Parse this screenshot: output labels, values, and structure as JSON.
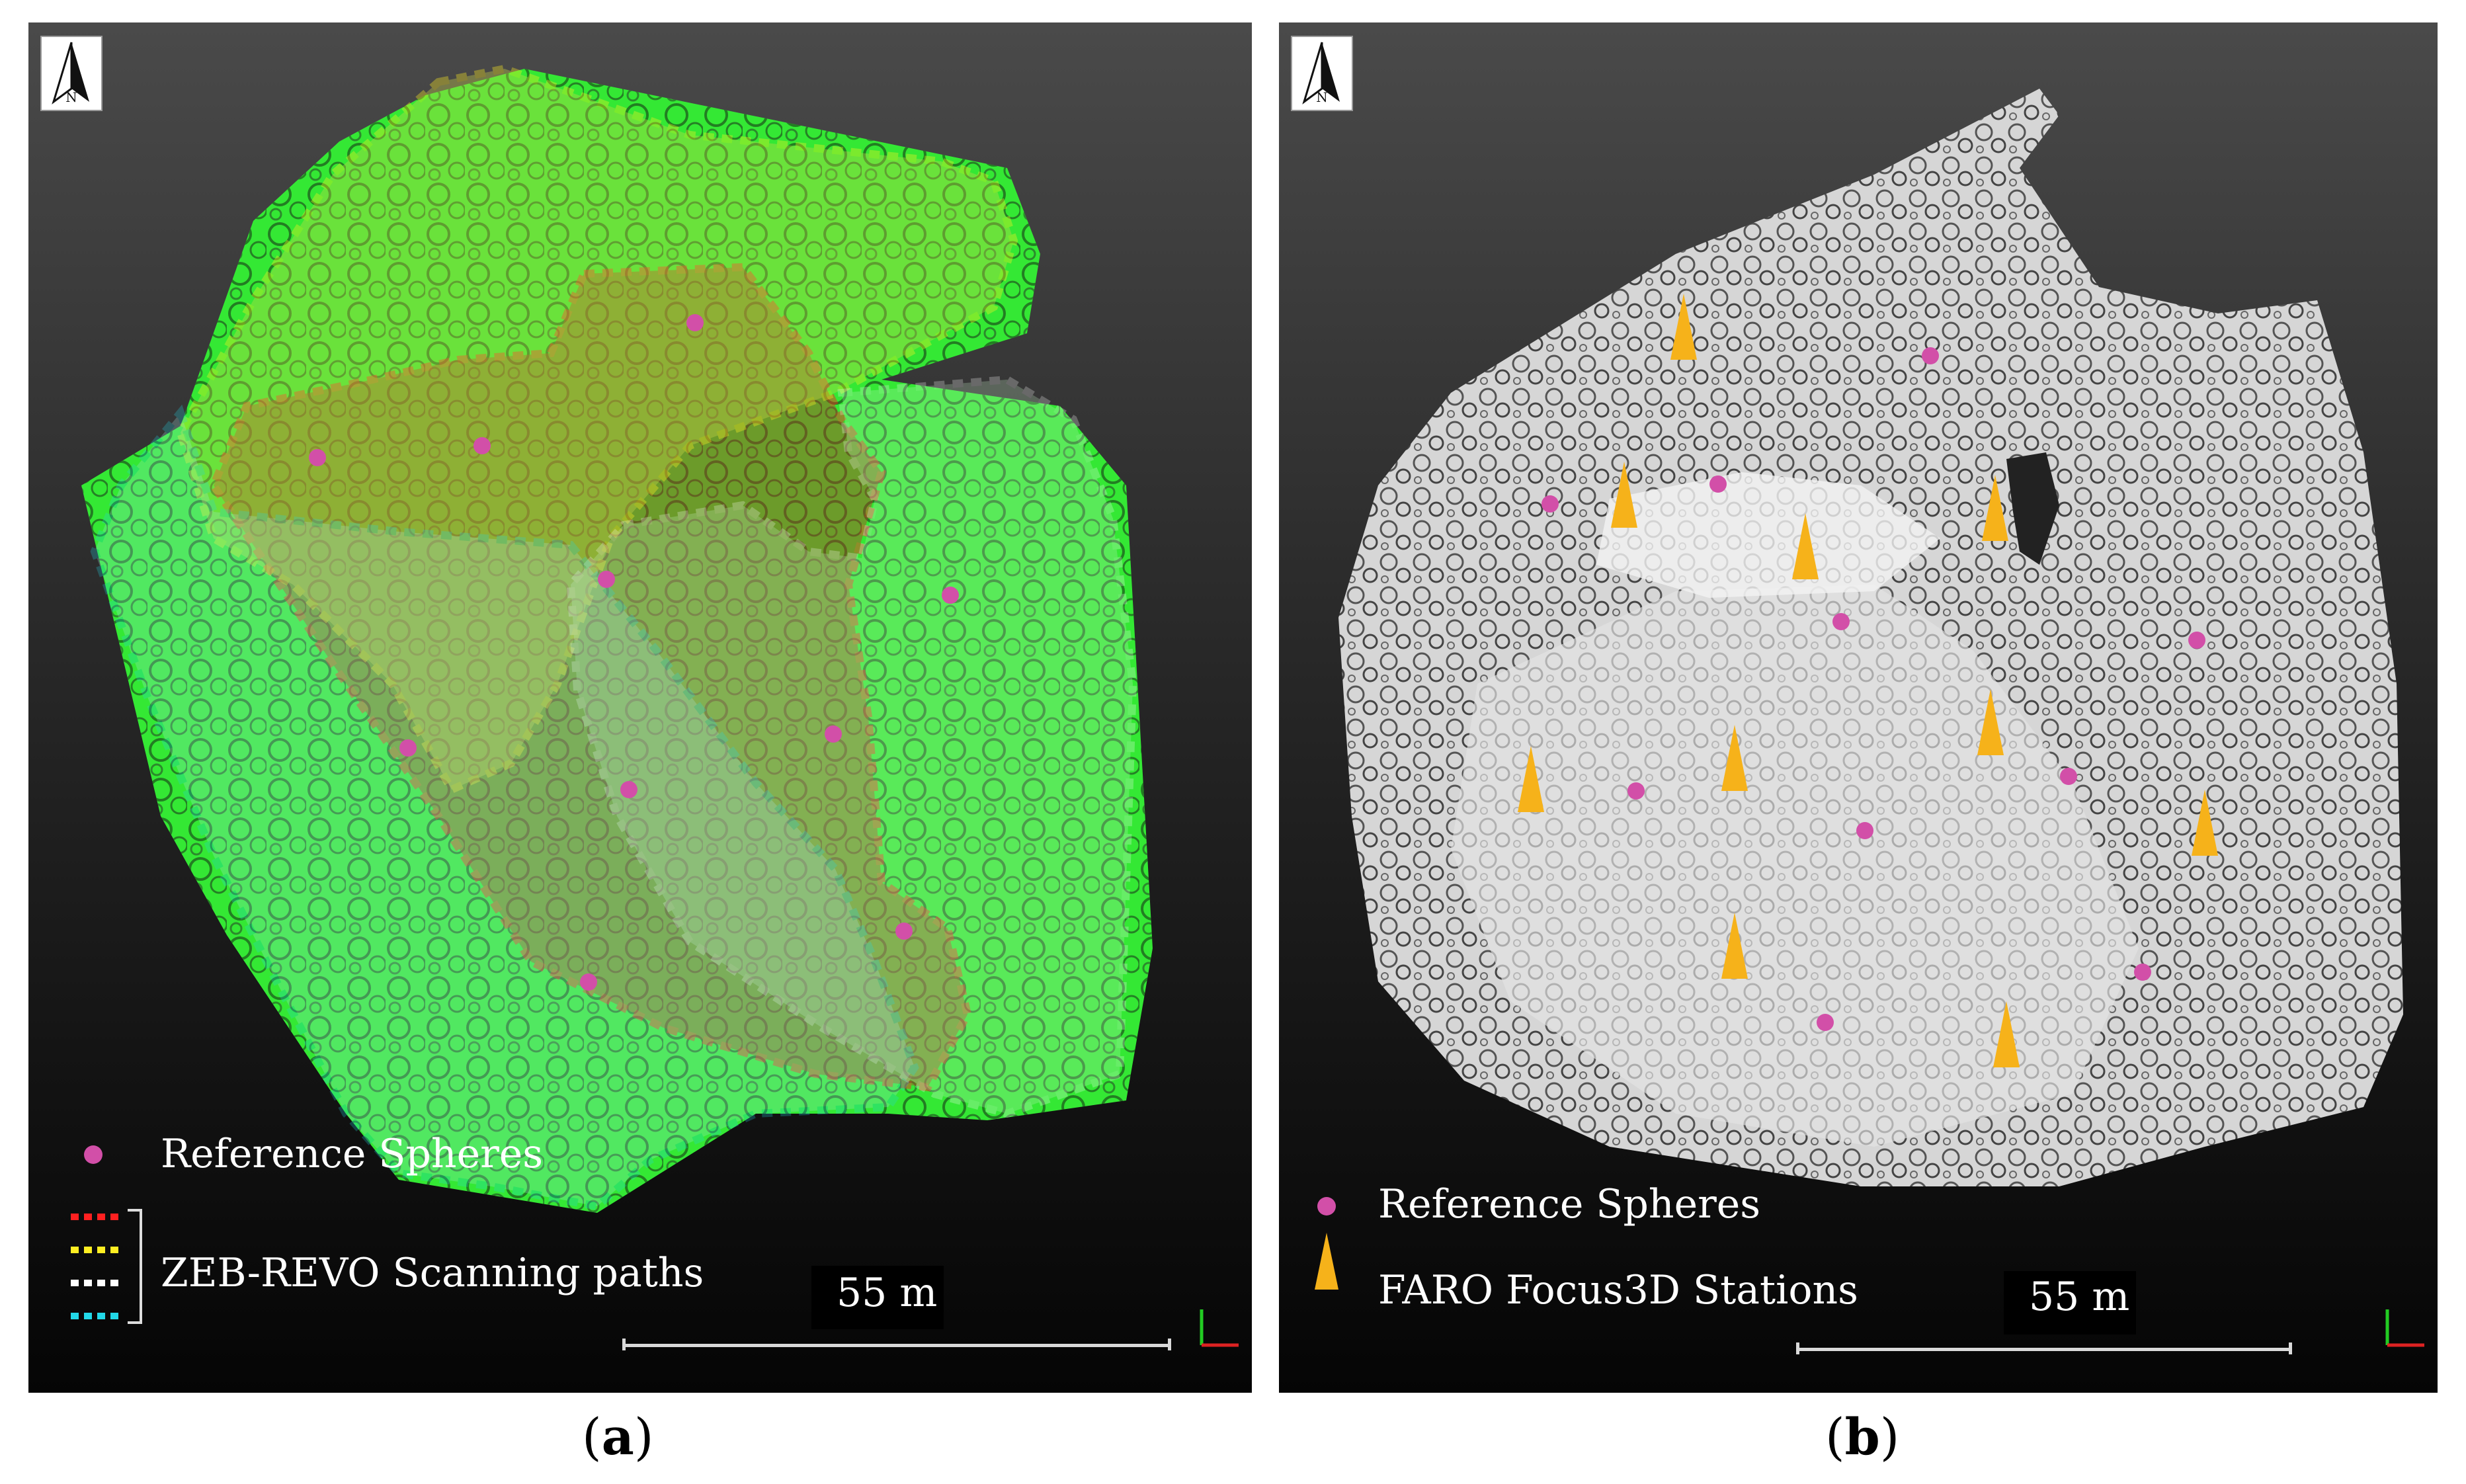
{
  "panels": {
    "a": {
      "caption_open": "(",
      "caption_letter": "a",
      "caption_close": ")",
      "north_label": "N",
      "legend": {
        "spheres": "Reference Spheres",
        "paths": "ZEB-REVO Scanning paths"
      },
      "path_colors": [
        "#ff2020",
        "#ffee22",
        "#ffffff",
        "#22d8e8"
      ],
      "scale_label": "55 m",
      "point_cloud_color": "#3cf03c"
    },
    "b": {
      "caption_open": "(",
      "caption_letter": "b",
      "caption_close": ")",
      "north_label": "N",
      "legend": {
        "spheres": "Reference Spheres",
        "stations": "FARO Focus3D Stations"
      },
      "scale_label": "55 m",
      "station_color": "#f6b21a",
      "sphere_color": "#d24fa8"
    }
  }
}
